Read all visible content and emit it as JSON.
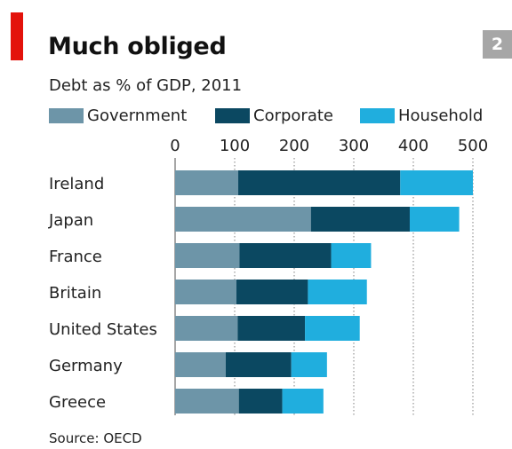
{
  "header": {
    "chart_number": "2"
  },
  "colors": {
    "accent": "#e3120b",
    "badge": "#a6a6a6",
    "grid": "#7f7f7f",
    "government": "#6d95a8",
    "corporate": "#0b4861",
    "household": "#20aede"
  },
  "chart_data": {
    "type": "bar",
    "orientation": "horizontal",
    "stacked": true,
    "title": "Much obliged",
    "subtitle": "Debt as % of GDP, 2011",
    "source": "Source: OECD",
    "categories": [
      "Ireland",
      "Japan",
      "France",
      "Britain",
      "United States",
      "Germany",
      "Greece"
    ],
    "series": [
      {
        "name": "Government",
        "color": "#6d95a8",
        "values": [
          106,
          228,
          108,
          103,
          105,
          85,
          107
        ]
      },
      {
        "name": "Corporate",
        "color": "#0b4861",
        "values": [
          272,
          166,
          154,
          120,
          113,
          110,
          73
        ]
      },
      {
        "name": "Household",
        "color": "#20aede",
        "values": [
          122,
          83,
          67,
          99,
          92,
          60,
          69
        ]
      }
    ],
    "xlim": [
      0,
      500
    ],
    "xticks": [
      "0",
      "100",
      "200",
      "300",
      "400",
      "500"
    ],
    "grid": true,
    "legend_position": "top"
  }
}
